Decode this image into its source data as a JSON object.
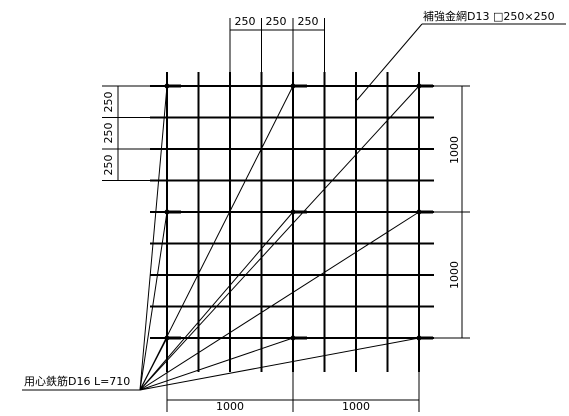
{
  "callouts": {
    "mesh": "補強金網D13 □250×250",
    "anchor": "用心鉄筋D16 L=710"
  },
  "dimensions": {
    "top": [
      "250",
      "250",
      "250"
    ],
    "left": [
      "250",
      "250",
      "250"
    ],
    "right": [
      "1000",
      "1000"
    ],
    "bottom": [
      "1000",
      "1000"
    ]
  },
  "colors": {
    "line": "#000000",
    "background": "#ffffff"
  }
}
